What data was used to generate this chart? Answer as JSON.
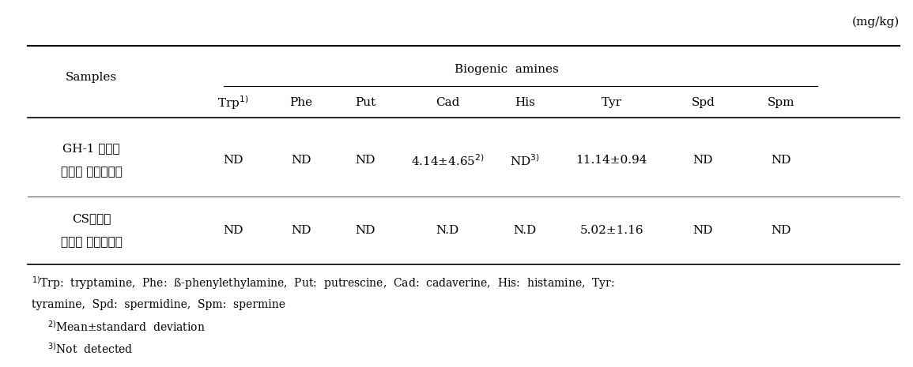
{
  "unit_label": "(mg/kg)",
  "group_header": "Biogenic  amines",
  "col_header_row1": "Samples",
  "col_headers": [
    "Trp¹⁾",
    "Phe",
    "Put",
    "Cad",
    "His",
    "Tyr",
    "Spd",
    "Spm"
  ],
  "col_headers_raw": [
    "Trp$^{1)}$",
    "Phe",
    "Put",
    "Cad",
    "His",
    "Tyr",
    "Spd",
    "Spm"
  ],
  "row1_label": [
    "GH-1 균주를",
    "적용한 발효소시지"
  ],
  "row2_label": [
    "CS균주를",
    "적용한 발효소시지"
  ],
  "row1_data": [
    "ND",
    "ND",
    "ND",
    "4.14±4.65$^{2)}$",
    "ND$^{3)}$",
    "11.14±0.94",
    "ND",
    "ND"
  ],
  "row2_data": [
    "ND",
    "ND",
    "ND",
    "N.D",
    "N.D",
    "5.02±1.16",
    "ND",
    "ND"
  ],
  "footnote1": "$^{1)}$Trp:  tryptamine,  Phe:  ß-phenylethylamine,  Put:  putrescine,  Cad:  cadaverine,  His:  histamine,  Tyr:",
  "footnote1b": "tyramine,  Spd:  spermidine,  Spm:  spermine",
  "footnote2": "$^{2)}$Mean±standard  deviation",
  "footnote3": "$^{3)}$Not  detected",
  "bg_color": "white",
  "text_color": "black",
  "line_color": "black",
  "font_size": 11,
  "footnote_size": 10
}
